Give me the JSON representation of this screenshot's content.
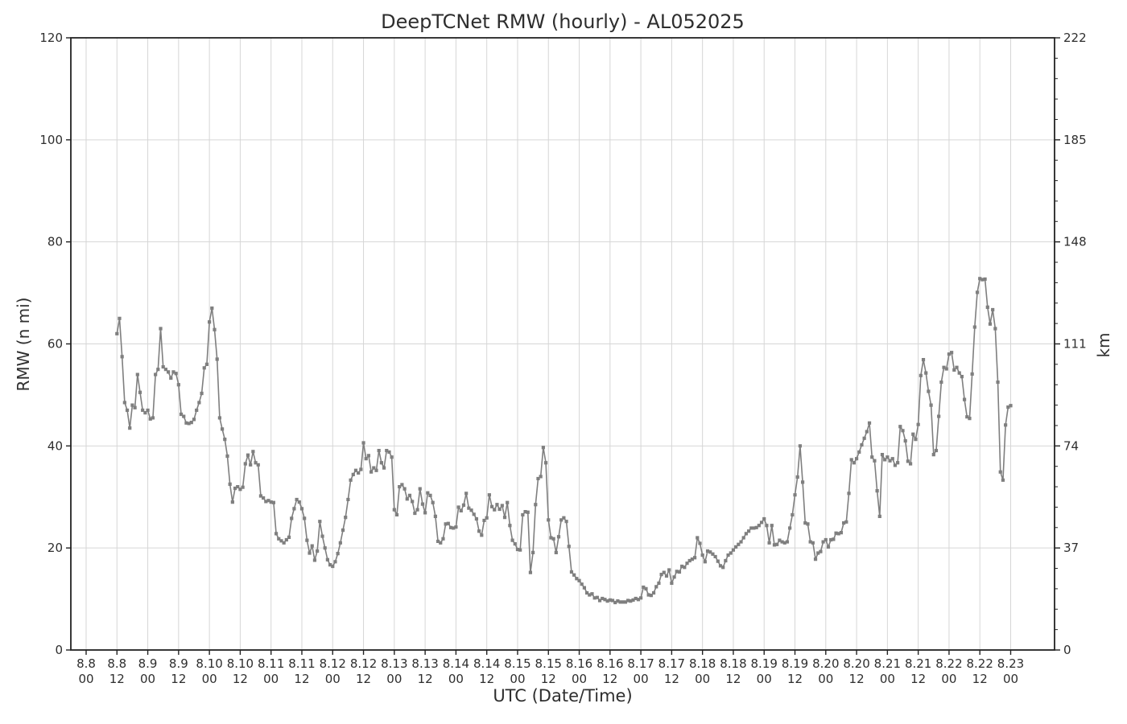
{
  "title": "DeepTCNet RMW (hourly) - AL052025",
  "chart_data": {
    "type": "line",
    "title": "DeepTCNet RMW (hourly) - AL052025",
    "xlabel": "UTC (Date/Time)",
    "ylabel_left": "RMW (n mi)",
    "ylabel_right": "km",
    "ylim": [
      0,
      120
    ],
    "y_ticks_left": [
      0,
      20,
      40,
      60,
      80,
      100,
      120
    ],
    "y_ticks_right": [
      0,
      37,
      74,
      111,
      148,
      185,
      222
    ],
    "right_minor_tick_step_nmi": 4,
    "grid": true,
    "legend": "none",
    "marker": "square",
    "colors": {
      "line": "#7f7f7f",
      "grid": "#d6d6d6",
      "spine": "#222222",
      "text": "#2e2e2e"
    },
    "x_ticks": [
      {
        "date": "8.8",
        "hour": "00"
      },
      {
        "date": "8.8",
        "hour": "12"
      },
      {
        "date": "8.9",
        "hour": "00"
      },
      {
        "date": "8.9",
        "hour": "12"
      },
      {
        "date": "8.10",
        "hour": "00"
      },
      {
        "date": "8.10",
        "hour": "12"
      },
      {
        "date": "8.11",
        "hour": "00"
      },
      {
        "date": "8.11",
        "hour": "12"
      },
      {
        "date": "8.12",
        "hour": "00"
      },
      {
        "date": "8.12",
        "hour": "12"
      },
      {
        "date": "8.13",
        "hour": "00"
      },
      {
        "date": "8.13",
        "hour": "12"
      },
      {
        "date": "8.14",
        "hour": "00"
      },
      {
        "date": "8.14",
        "hour": "12"
      },
      {
        "date": "8.15",
        "hour": "00"
      },
      {
        "date": "8.15",
        "hour": "12"
      },
      {
        "date": "8.16",
        "hour": "00"
      },
      {
        "date": "8.16",
        "hour": "12"
      },
      {
        "date": "8.17",
        "hour": "00"
      },
      {
        "date": "8.17",
        "hour": "12"
      },
      {
        "date": "8.18",
        "hour": "00"
      },
      {
        "date": "8.18",
        "hour": "12"
      },
      {
        "date": "8.19",
        "hour": "00"
      },
      {
        "date": "8.19",
        "hour": "12"
      },
      {
        "date": "8.20",
        "hour": "00"
      },
      {
        "date": "8.20",
        "hour": "12"
      },
      {
        "date": "8.21",
        "hour": "00"
      },
      {
        "date": "8.21",
        "hour": "12"
      },
      {
        "date": "8.22",
        "hour": "00"
      },
      {
        "date": "8.22",
        "hour": "12"
      },
      {
        "date": "8.23",
        "hour": "00"
      }
    ],
    "series": [
      {
        "name": "RMW (n mi)",
        "start_date": "8.8",
        "start_hour_utc": 12,
        "interval_hours": 1,
        "start_offset_hours_from_first_tick": 12,
        "values": [
          62,
          65,
          57.5,
          48.5,
          47,
          43.5,
          48,
          47.5,
          54,
          50.5,
          47,
          46.5,
          47,
          45.3,
          45.5,
          54,
          55,
          63,
          55.5,
          55,
          54.5,
          53.3,
          54.5,
          54.2,
          52,
          46.2,
          45.8,
          44.5,
          44.4,
          44.6,
          45.2,
          47,
          48.5,
          50.3,
          55.3,
          56,
          64.3,
          67,
          62.8,
          57,
          45.5,
          43.3,
          41.3,
          38,
          32.5,
          29,
          31.7,
          32,
          31.5,
          31.9,
          36.5,
          38.2,
          36.3,
          38.9,
          36.7,
          36.3,
          30.2,
          29.8,
          29.1,
          29.3,
          29,
          28.9,
          22.8,
          21.8,
          21.4,
          21,
          21.6,
          22.1,
          25.8,
          27.7,
          29.5,
          29,
          27.7,
          25.8,
          21.5,
          19,
          20.4,
          17.6,
          19.4,
          25.2,
          22.3,
          20,
          17.7,
          16.7,
          16.4,
          17.3,
          18.9,
          21,
          23.5,
          26,
          29.5,
          33.3,
          34.4,
          35.2,
          34.7,
          35.4,
          40.6,
          37.5,
          38.1,
          34.9,
          35.7,
          35.2,
          39.1,
          36.7,
          35.7,
          39.1,
          38.8,
          37.8,
          27.5,
          26.5,
          32,
          32.4,
          31.6,
          29.6,
          30.3,
          29.1,
          26.8,
          27.5,
          31.6,
          28.6,
          26.9,
          30.8,
          30.3,
          28.9,
          26.2,
          21.3,
          21,
          21.8,
          24.7,
          24.8,
          24,
          23.9,
          24.1,
          28,
          27.3,
          28.4,
          30.7,
          27.8,
          27.4,
          26.6,
          25.7,
          23.3,
          22.5,
          25.4,
          25.9,
          30.4,
          28.1,
          27.5,
          28.5,
          27.6,
          28.3,
          26,
          28.9,
          24.4,
          21.5,
          20.8,
          19.7,
          19.6,
          26.5,
          27.1,
          27,
          15.2,
          19.1,
          28.5,
          33.6,
          34,
          39.7,
          36.7,
          25.5,
          22,
          21.8,
          19.1,
          22.2,
          25.5,
          25.9,
          25.2,
          20.3,
          15.3,
          14.7,
          14,
          13.6,
          12.9,
          12.2,
          11.2,
          10.8,
          11,
          10.2,
          10.3,
          9.7,
          10.1,
          9.9,
          9.6,
          9.8,
          9.7,
          9.3,
          9.6,
          9.4,
          9.4,
          9.4,
          9.7,
          9.6,
          9.8,
          10.1,
          9.9,
          10.2,
          12.3,
          12,
          10.8,
          10.7,
          11.2,
          12.4,
          13.1,
          14.8,
          15.2,
          14.5,
          15.7,
          13.1,
          14.3,
          15.4,
          15.3,
          16.4,
          16.2,
          17,
          17.5,
          17.8,
          18.1,
          22,
          20.9,
          18.6,
          17.3,
          19.4,
          19.2,
          18.8,
          18.3,
          17.4,
          16.5,
          16.2,
          17.5,
          18.6,
          19,
          19.6,
          20.2,
          20.7,
          21.2,
          22,
          22.8,
          23.3,
          23.9,
          23.9,
          24,
          24.4,
          25,
          25.7,
          24.4,
          21,
          24.4,
          20.6,
          20.7,
          21.5,
          21.2,
          21,
          21.2,
          23.9,
          26.5,
          30.4,
          33.9,
          40,
          32.9,
          24.9,
          24.7,
          21.2,
          21,
          17.8,
          19,
          19.3,
          21.2,
          21.6,
          20.2,
          21.6,
          21.7,
          22.9,
          22.8,
          23,
          24.9,
          25.1,
          30.7,
          37.3,
          36.7,
          37.5,
          38.8,
          40.2,
          41.5,
          42.8,
          44.5,
          37.8,
          37.1,
          31.2,
          26.2,
          38.3,
          37.3,
          37.8,
          37.1,
          37.5,
          36.2,
          36.7,
          43.8,
          43,
          41,
          37,
          36.5,
          42.3,
          41.3,
          44.2,
          53.8,
          56.9,
          54.3,
          50.7,
          48,
          38.3,
          39.1,
          45.8,
          52.5,
          55.4,
          55.1,
          58,
          58.3,
          54.9,
          55.4,
          54.3,
          53.6,
          49.1,
          45.7,
          45.4,
          54.1,
          63.3,
          70.1,
          72.8,
          72.6,
          72.7,
          67.2,
          63.9,
          66.7,
          63,
          52.5,
          34.9,
          33.3,
          44.1,
          47.6,
          47.9
        ]
      }
    ]
  }
}
